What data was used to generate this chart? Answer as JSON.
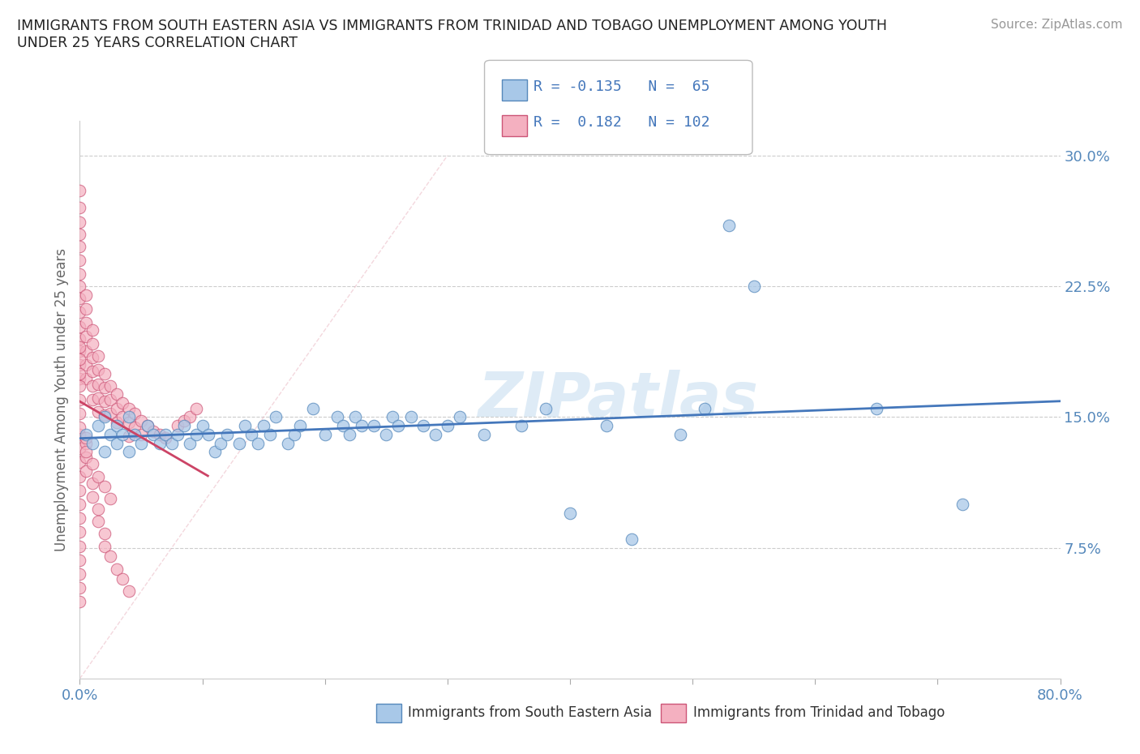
{
  "title": "IMMIGRANTS FROM SOUTH EASTERN ASIA VS IMMIGRANTS FROM TRINIDAD AND TOBAGO UNEMPLOYMENT AMONG YOUTH\nUNDER 25 YEARS CORRELATION CHART",
  "source": "Source: ZipAtlas.com",
  "ylabel": "Unemployment Among Youth under 25 years",
  "xlim": [
    0.0,
    0.8
  ],
  "ylim": [
    0.0,
    0.32
  ],
  "xticks": [
    0.0,
    0.1,
    0.2,
    0.3,
    0.4,
    0.5,
    0.6,
    0.7,
    0.8
  ],
  "xticklabels": [
    "0.0%",
    "",
    "",
    "",
    "",
    "",
    "",
    "",
    "80.0%"
  ],
  "yticks_right": [
    0.075,
    0.15,
    0.225,
    0.3
  ],
  "ytick_right_labels": [
    "7.5%",
    "15.0%",
    "22.5%",
    "30.0%"
  ],
  "blue_R": -0.135,
  "blue_N": 65,
  "pink_R": 0.182,
  "pink_N": 102,
  "blue_color": "#a8c8e8",
  "pink_color": "#f4b0c0",
  "blue_edge_color": "#5588bb",
  "pink_edge_color": "#cc5577",
  "blue_line_color": "#4477bb",
  "pink_line_color": "#cc4466",
  "blue_label": "Immigrants from South Eastern Asia",
  "pink_label": "Immigrants from Trinidad and Tobago",
  "watermark": "ZIPatlas",
  "watermark_color": "#c8dff0",
  "blue_x": [
    0.005,
    0.01,
    0.015,
    0.02,
    0.02,
    0.025,
    0.03,
    0.03,
    0.035,
    0.04,
    0.04,
    0.045,
    0.05,
    0.055,
    0.06,
    0.065,
    0.07,
    0.075,
    0.08,
    0.085,
    0.09,
    0.095,
    0.1,
    0.105,
    0.11,
    0.115,
    0.12,
    0.13,
    0.135,
    0.14,
    0.145,
    0.15,
    0.155,
    0.16,
    0.17,
    0.175,
    0.18,
    0.19,
    0.2,
    0.21,
    0.215,
    0.22,
    0.225,
    0.23,
    0.24,
    0.25,
    0.255,
    0.26,
    0.27,
    0.28,
    0.29,
    0.3,
    0.31,
    0.33,
    0.36,
    0.38,
    0.4,
    0.43,
    0.45,
    0.49,
    0.51,
    0.53,
    0.55,
    0.65,
    0.72
  ],
  "blue_y": [
    0.14,
    0.135,
    0.145,
    0.13,
    0.15,
    0.14,
    0.135,
    0.145,
    0.14,
    0.13,
    0.15,
    0.14,
    0.135,
    0.145,
    0.14,
    0.135,
    0.14,
    0.135,
    0.14,
    0.145,
    0.135,
    0.14,
    0.145,
    0.14,
    0.13,
    0.135,
    0.14,
    0.135,
    0.145,
    0.14,
    0.135,
    0.145,
    0.14,
    0.15,
    0.135,
    0.14,
    0.145,
    0.155,
    0.14,
    0.15,
    0.145,
    0.14,
    0.15,
    0.145,
    0.145,
    0.14,
    0.15,
    0.145,
    0.15,
    0.145,
    0.14,
    0.145,
    0.15,
    0.14,
    0.145,
    0.155,
    0.095,
    0.145,
    0.08,
    0.14,
    0.155,
    0.26,
    0.225,
    0.155,
    0.1
  ],
  "pink_x": [
    0.0,
    0.0,
    0.0,
    0.0,
    0.0,
    0.0,
    0.0,
    0.0,
    0.0,
    0.0,
    0.0,
    0.0,
    0.0,
    0.0,
    0.0,
    0.005,
    0.005,
    0.005,
    0.005,
    0.005,
    0.005,
    0.005,
    0.01,
    0.01,
    0.01,
    0.01,
    0.01,
    0.01,
    0.015,
    0.015,
    0.015,
    0.015,
    0.015,
    0.02,
    0.02,
    0.02,
    0.02,
    0.025,
    0.025,
    0.025,
    0.03,
    0.03,
    0.03,
    0.035,
    0.035,
    0.04,
    0.04,
    0.04,
    0.045,
    0.045,
    0.05,
    0.05,
    0.055,
    0.06,
    0.065,
    0.07,
    0.08,
    0.085,
    0.09,
    0.095,
    0.0,
    0.0,
    0.0,
    0.0,
    0.0,
    0.0,
    0.0,
    0.0,
    0.0,
    0.0,
    0.0,
    0.0,
    0.0,
    0.005,
    0.005,
    0.005,
    0.01,
    0.01,
    0.015,
    0.015,
    0.02,
    0.02,
    0.025,
    0.03,
    0.035,
    0.04,
    0.0,
    0.0,
    0.0,
    0.005,
    0.005,
    0.01,
    0.015,
    0.02,
    0.025,
    0.0,
    0.0,
    0.0,
    0.0
  ],
  "pink_y": [
    0.28,
    0.27,
    0.262,
    0.255,
    0.248,
    0.24,
    0.232,
    0.225,
    0.218,
    0.21,
    0.202,
    0.195,
    0.188,
    0.18,
    0.172,
    0.22,
    0.212,
    0.204,
    0.196,
    0.188,
    0.18,
    0.172,
    0.2,
    0.192,
    0.184,
    0.176,
    0.168,
    0.16,
    0.185,
    0.177,
    0.169,
    0.161,
    0.153,
    0.175,
    0.167,
    0.159,
    0.151,
    0.168,
    0.16,
    0.152,
    0.163,
    0.155,
    0.147,
    0.158,
    0.15,
    0.155,
    0.147,
    0.139,
    0.152,
    0.144,
    0.148,
    0.14,
    0.145,
    0.142,
    0.14,
    0.138,
    0.145,
    0.148,
    0.15,
    0.155,
    0.14,
    0.132,
    0.124,
    0.116,
    0.108,
    0.1,
    0.092,
    0.084,
    0.076,
    0.068,
    0.06,
    0.052,
    0.044,
    0.135,
    0.127,
    0.119,
    0.112,
    0.104,
    0.097,
    0.09,
    0.083,
    0.076,
    0.07,
    0.063,
    0.057,
    0.05,
    0.16,
    0.152,
    0.144,
    0.138,
    0.13,
    0.123,
    0.116,
    0.11,
    0.103,
    0.168,
    0.175,
    0.183,
    0.19
  ]
}
